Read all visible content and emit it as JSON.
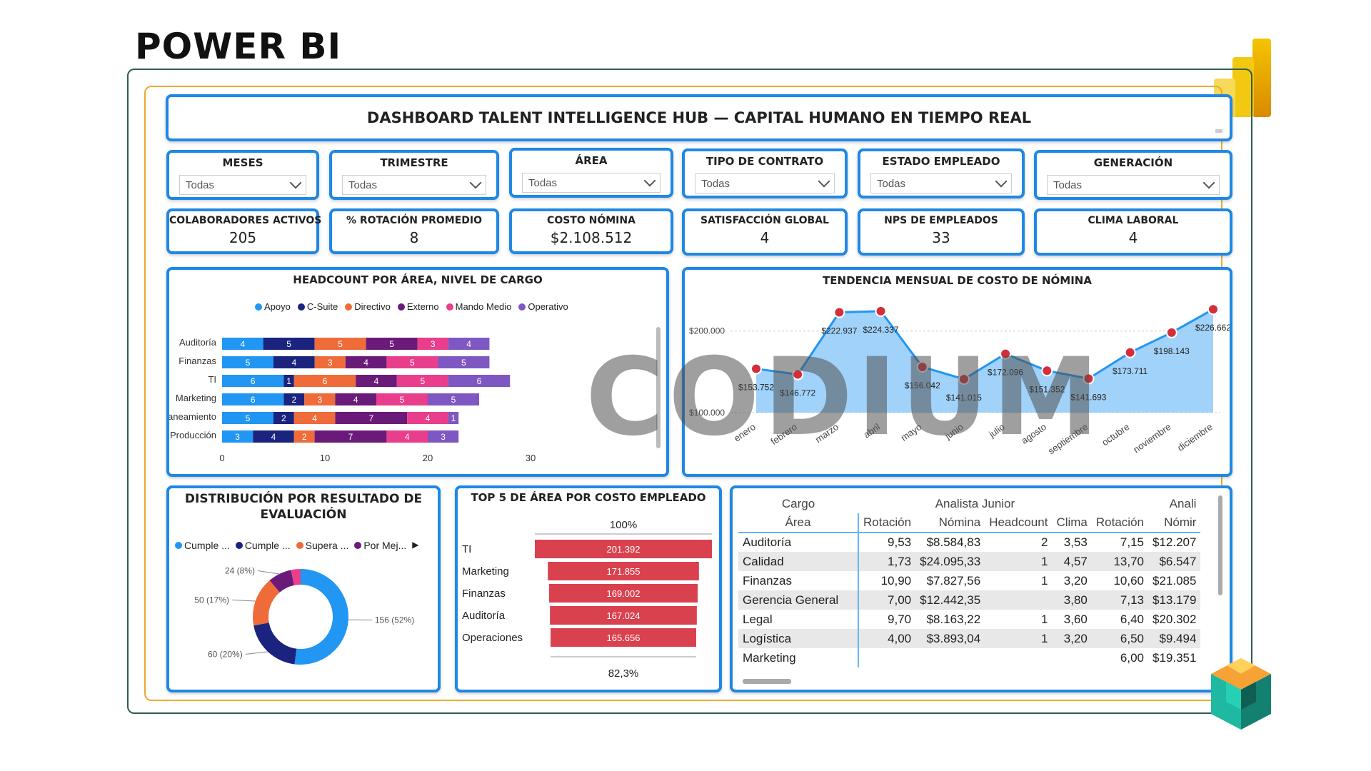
{
  "heading": "POWER BI",
  "dashboard_title": "DASHBOARD TALENT INTELLIGENCE HUB — CAPITAL HUMANO EN TIEMPO REAL",
  "slicers": [
    {
      "label": "MESES",
      "value": "Todas"
    },
    {
      "label": "TRIMESTRE",
      "value": "Todas"
    },
    {
      "label": "ÁREA",
      "value": "Todas"
    },
    {
      "label": "TIPO DE CONTRATO",
      "value": "Todas"
    },
    {
      "label": "ESTADO EMPLEADO",
      "value": "Todas"
    },
    {
      "label": "GENERACIÓN",
      "value": "Todas"
    }
  ],
  "kpis": [
    {
      "label": "COLABORADORES ACTIVOS",
      "value": "205"
    },
    {
      "label": "% ROTACIÓN PROMEDIO",
      "value": "8"
    },
    {
      "label": "COSTO NÓMINA",
      "value": "$2.108.512"
    },
    {
      "label": "SATISFACCIÓN GLOBAL",
      "value": "4"
    },
    {
      "label": "NPS DE EMPLEADOS",
      "value": "33"
    },
    {
      "label": "CLIMA LABORAL",
      "value": "4"
    }
  ],
  "watermark": "CODIUM",
  "colors": {
    "accent": "#1e88e5",
    "apoyo": "#2196f3",
    "csuite": "#1a237e",
    "directivo": "#ef6c3a",
    "externo": "#6a1b7a",
    "mando": "#e83e8c",
    "operativo": "#7e57c2",
    "funnel": "#d9414e",
    "line": "#2196f3",
    "area": "#90caf9",
    "point": "#d32f3a"
  },
  "chart_data": [
    {
      "type": "bar",
      "orientation": "horizontal-stacked",
      "title": "HEADCOUNT POR ÁREA, NIVEL DE CARGO",
      "categories": [
        "Auditoría",
        "Finanzas",
        "TI",
        "Marketing",
        "Planeamiento",
        "Producción"
      ],
      "series": [
        {
          "name": "Apoyo",
          "values": [
            4,
            5,
            6,
            6,
            5,
            3
          ]
        },
        {
          "name": "C-Suite",
          "values": [
            5,
            4,
            1,
            2,
            2,
            4
          ]
        },
        {
          "name": "Directivo",
          "values": [
            5,
            3,
            6,
            3,
            4,
            2
          ]
        },
        {
          "name": "Externo",
          "values": [
            5,
            4,
            4,
            4,
            7,
            7
          ]
        },
        {
          "name": "Mando Medio",
          "values": [
            3,
            5,
            5,
            5,
            4,
            4
          ]
        },
        {
          "name": "Operativo",
          "values": [
            4,
            5,
            6,
            5,
            1,
            3
          ]
        }
      ],
      "xticks": [
        "0",
        "10",
        "20",
        "30"
      ],
      "xlim": [
        0,
        30
      ]
    },
    {
      "type": "line",
      "title": "TENDENCIA MENSUAL DE COSTO DE NÓMINA",
      "categories": [
        "enero",
        "febrero",
        "marzo",
        "abril",
        "mayo",
        "junio",
        "julio",
        "agosto",
        "septiembre",
        "octubre",
        "noviembre",
        "diciembre"
      ],
      "values": [
        153752,
        146772,
        222937,
        224337,
        156042,
        141015,
        172096,
        151352,
        141693,
        173711,
        198143,
        226662
      ],
      "labels": [
        "$153.752",
        "$146.772",
        "$222.937",
        "$224.337",
        "$156.042",
        "$141.015",
        "$172.096",
        "$151.352",
        "$141.693",
        "$173.711",
        "$198.143",
        "$226.662"
      ],
      "yticks": [
        "$100.000",
        "$200.000"
      ],
      "ylim": [
        100000,
        240000
      ]
    },
    {
      "type": "pie",
      "subtype": "donut",
      "title": "DISTRIBUCIÓN POR RESULTADO DE EVALUACIÓN",
      "legend": [
        "Cumple ...",
        "Cumple ...",
        "Supera ...",
        "Por Mej..."
      ],
      "values": [
        156,
        60,
        50,
        24
      ],
      "labels": [
        "156 (52%)",
        "60 (20%)",
        "50 (17%)",
        "24 (8%)"
      ],
      "colors": [
        "#2196f3",
        "#1a237e",
        "#ef6c3a",
        "#6a1b7a",
        "#e83e8c"
      ]
    },
    {
      "type": "bar",
      "orientation": "funnel",
      "title": "TOP 5 DE ÁREA POR COSTO EMPLEADO",
      "categories": [
        "TI",
        "Marketing",
        "Finanzas",
        "Auditoría",
        "Operaciones"
      ],
      "values": [
        201392,
        171855,
        169002,
        167024,
        165656
      ],
      "labels": [
        "201.392",
        "171.855",
        "169.002",
        "167.024",
        "165.656"
      ],
      "top_label": "100%",
      "bottom_label": "82,3%"
    }
  ],
  "matrix": {
    "header_row1": {
      "corner": "Cargo",
      "group1": "Analista Junior",
      "group2": "Anali"
    },
    "header_row2": [
      "Área",
      "Rotación",
      "Nómina",
      "Headcount",
      "Clima",
      "Rotación",
      "Nómir"
    ],
    "rows": [
      [
        "Auditoría",
        "9,53",
        "$8.584,83",
        "2",
        "3,53",
        "7,15",
        "$12.207"
      ],
      [
        "Calidad",
        "1,73",
        "$24.095,33",
        "1",
        "4,57",
        "13,70",
        "$6.547"
      ],
      [
        "Finanzas",
        "10,90",
        "$7.827,56",
        "1",
        "3,20",
        "10,60",
        "$21.085"
      ],
      [
        "Gerencia General",
        "7,00",
        "$12.442,35",
        "",
        "3,80",
        "7,13",
        "$13.179"
      ],
      [
        "Legal",
        "9,70",
        "$8.163,22",
        "1",
        "3,60",
        "6,40",
        "$20.302"
      ],
      [
        "Logística",
        "4,00",
        "$3.893,04",
        "1",
        "3,20",
        "6,50",
        "$9.494"
      ],
      [
        "Marketing",
        "",
        "",
        "",
        "",
        "6,00",
        "$19.351"
      ]
    ]
  }
}
